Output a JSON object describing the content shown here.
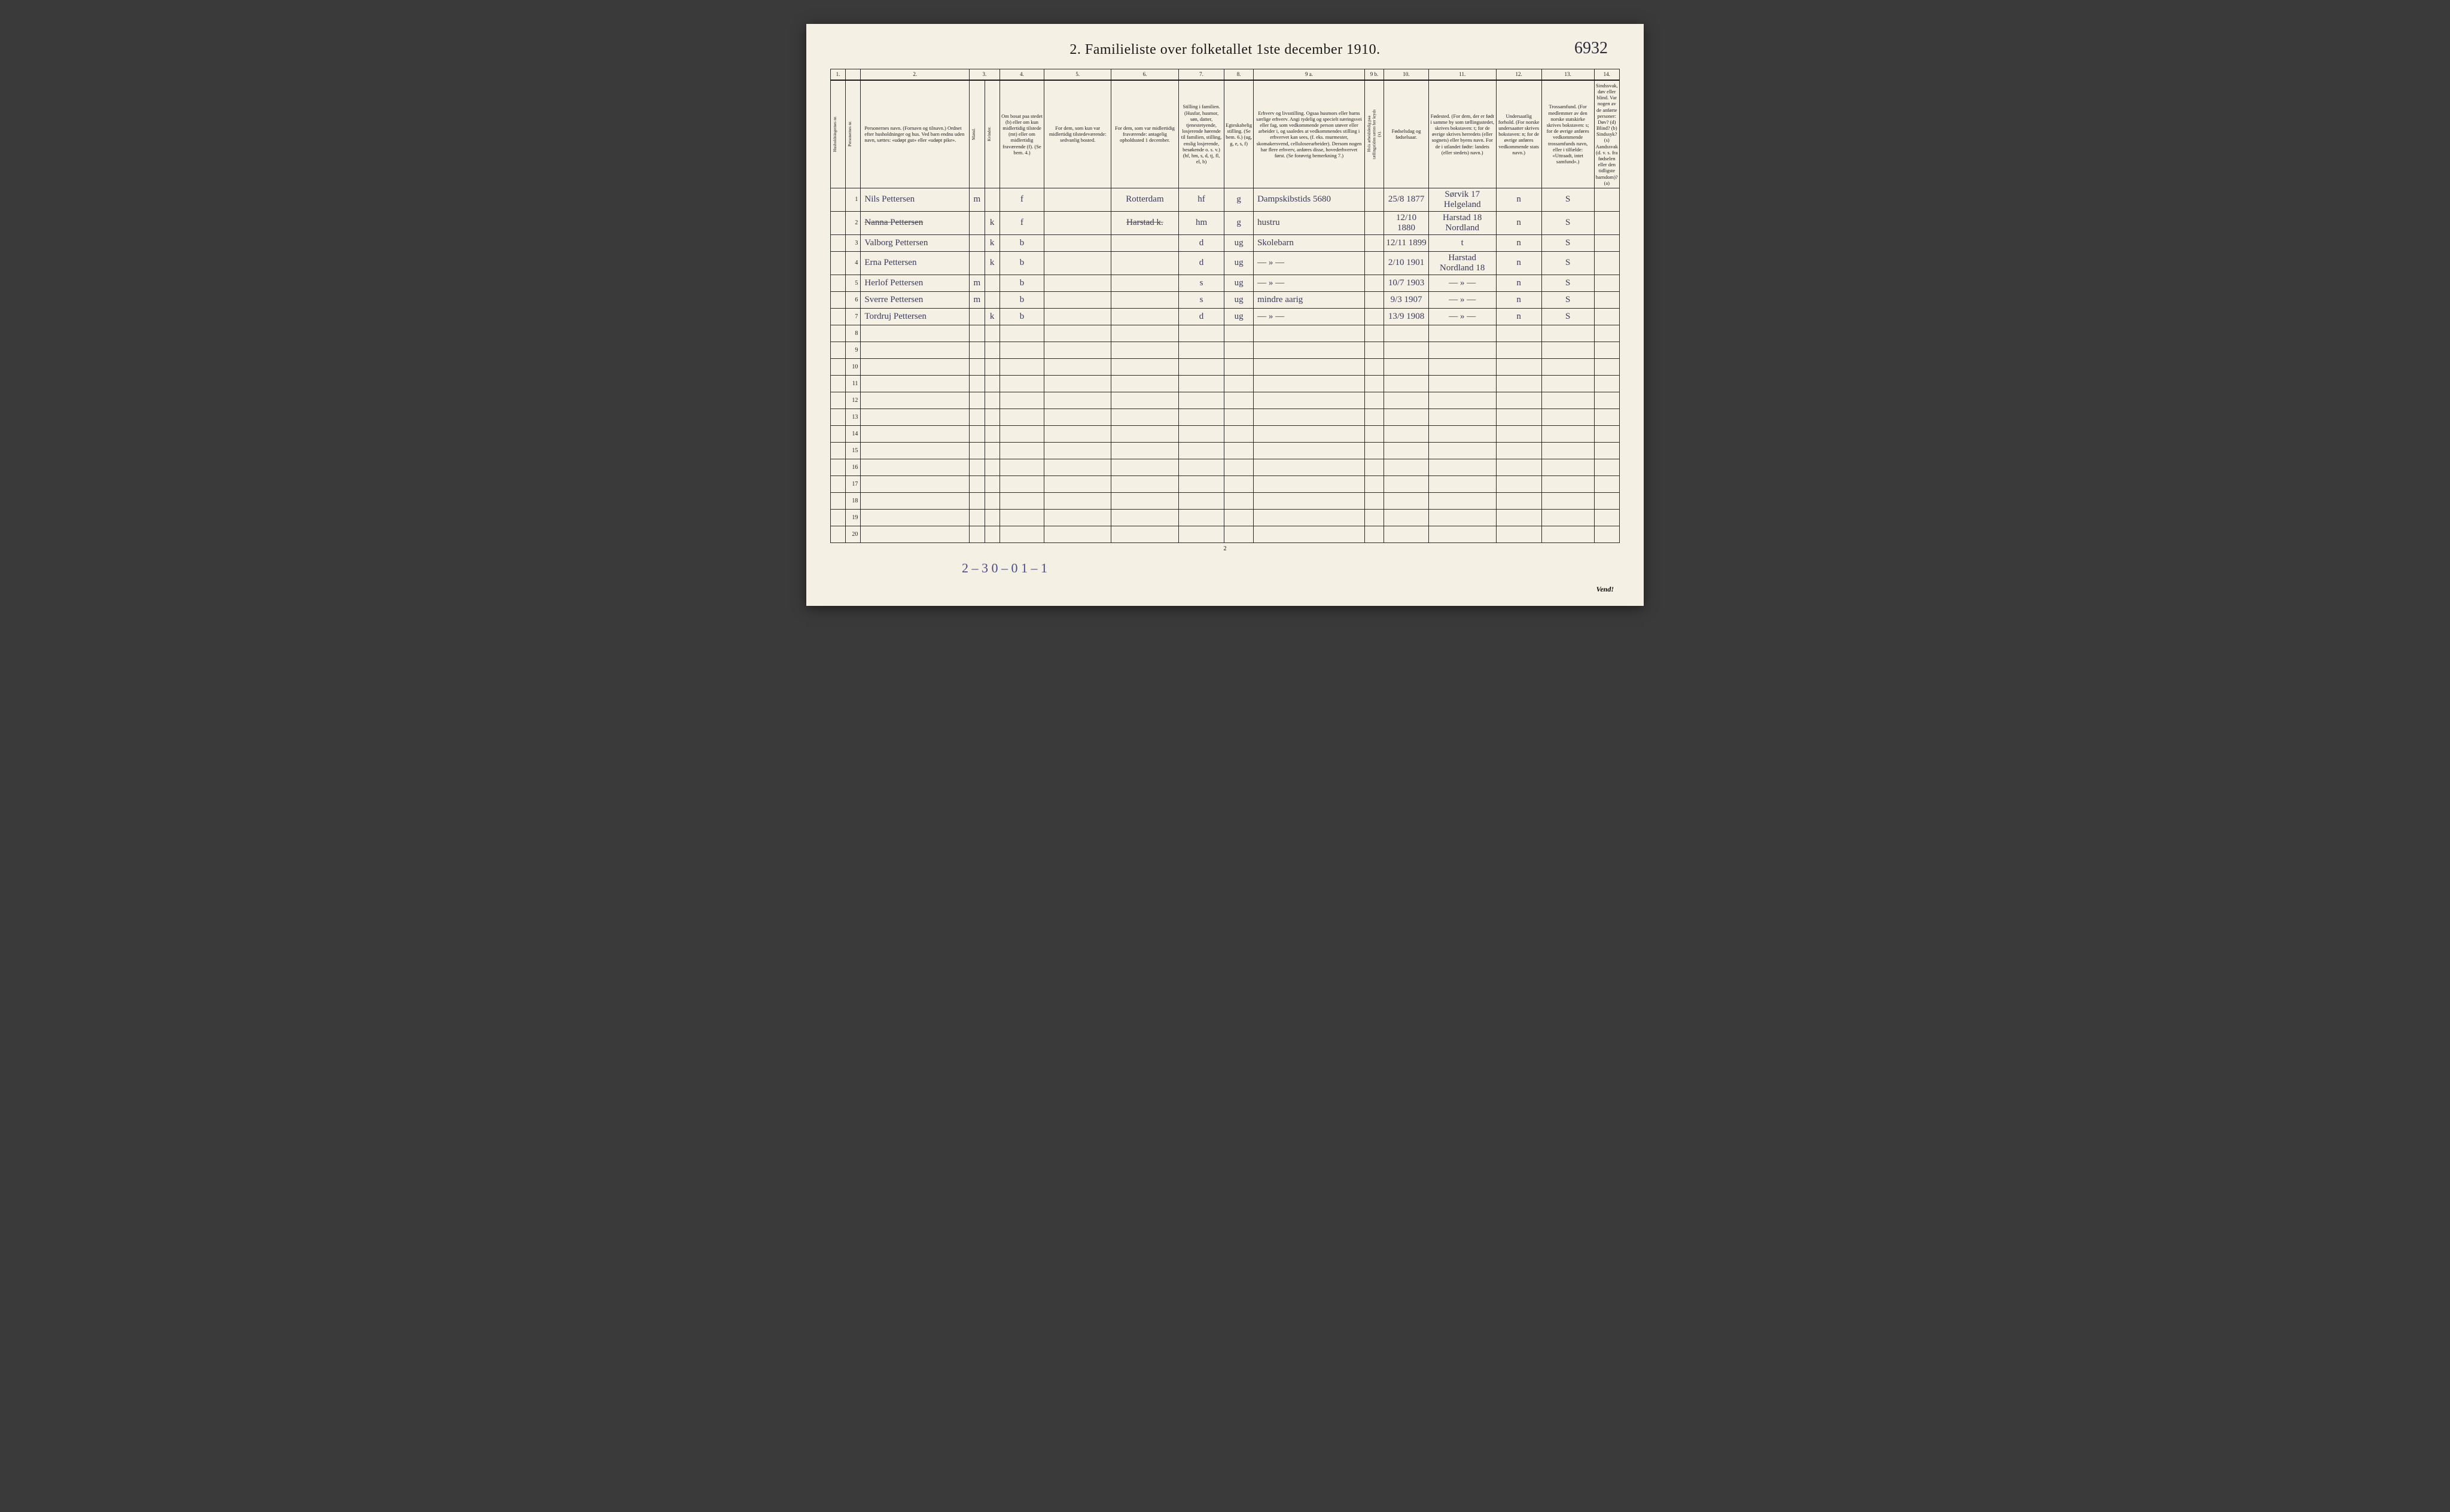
{
  "annotation_topright": "6932",
  "title": "2.  Familieliste over folketallet 1ste december 1910.",
  "column_numbers": [
    "1.",
    "",
    "2.",
    "3.",
    "4.",
    "5.",
    "6.",
    "7.",
    "8.",
    "9 a.",
    "9 b.",
    "10.",
    "11.",
    "12.",
    "13.",
    "14."
  ],
  "headers": {
    "c1": "Husholdningernes nr.",
    "c1b": "Personernes nr.",
    "c2": "Personernes navn.\n(Fornavn og tilnavn.)\nOrdnet efter husholdninger og hus.\nVed barn endnu uden navn, sættes: «udøpt gut» eller «udøpt pike».",
    "c3": "Kjøn.",
    "c3m": "Mænd.",
    "c3k": "Kvinder.",
    "c3sub": "m. k.",
    "c4": "Om bosat paa stedet (b) eller om kun midlertidig tilstede (mt) eller om midlertidig fraværende (f). (Se bem. 4.)",
    "c5": "For dem, som kun var midlertidig tilstedeværende:\nsedvanlig bosted.",
    "c6": "For dem, som var midlertidig fraværende:\nantagelig opholdssted 1 december.",
    "c7": "Stilling i familien.\n(Husfar, husmor, søn, datter, tjenestetyende, losjerende hørende til familien, stilling, enslig losjerende, besøkende o. s. v.)\n(hf, hm, s, d, tj, fl, el, b)",
    "c8": "Egteskabelig stilling.\n(Se bem. 6.)\n(ug, g, e, s, f)",
    "c9a": "Erhverv og livsstilling.\nOgsaa husmors eller barns særlige erhverv. Angi tydelig og specielt næringsvei eller fag, som vedkommende person utøver eller arbeider i, og saaledes at vedkommendes stilling i erhvervet kan sees, (f. eks. murmester, skomakersvend, celluloseearbeider). Dersom nogen har flere erhverv, anføres disse, hovederhvervet først. (Se forøvrig bemerkning 7.)",
    "c9b": "Hvis arbeidsledig paa tællingstiden sættes her kryds (x).",
    "c10": "Fødselsdag og fødselsaar.",
    "c11": "Fødested.\n(For dem, der er født i samme by som tællingsstedet, skrives bokstaven: t; for de øvrige skrives herredets (eller sognets) eller byens navn. For de i utlandet fødte: landets (eller stedets) navn.)",
    "c12": "Undersaatlig forhold.\n(For norske undersaatter skrives bokstaven: n; for de øvrige anføres vedkommende stats navn.)",
    "c13": "Trossamfund.\n(For medlemmer av den norske statskirke skrives bokstaven: s; for de øvrige anføres vedkommende trossamfunds navn, eller i tilfælde: «Uttraadt, intet samfund».)",
    "c14": "Sindssvak, døv eller blind.\nVar nogen av de anførte personer:\nDøv? (d)\nBlind? (b)\nSindssyk? (s)\nAandssvak (d. v. s. fra fødselen eller den tidligste barndom)? (a)"
  },
  "rows": [
    {
      "n": "1",
      "name": "Nils Pettersen",
      "sex": "m",
      "res": "f",
      "c5": "",
      "c6": "Rotterdam",
      "fam": "hf",
      "mar": "g",
      "occ": "Dampskibstids 5680",
      "dob": "25/8 1877",
      "birthplace": "Sørvik 17 Helgeland",
      "nat": "n",
      "rel": "S",
      "c14": ""
    },
    {
      "n": "2",
      "name": "Nanna Pettersen",
      "nameStruck": true,
      "sex": "k",
      "res": "f",
      "c5": "",
      "c6": "Harstad k.",
      "c6Struck": true,
      "fam": "hm",
      "mar": "g",
      "occ": "hustru",
      "dob": "12/10 1880",
      "birthplace": "Harstad 18 Nordland",
      "nat": "n",
      "rel": "S",
      "c14": ""
    },
    {
      "n": "3",
      "name": "Valborg Pettersen",
      "sex": "k",
      "res": "b",
      "c5": "",
      "c6": "",
      "fam": "d",
      "mar": "ug",
      "occ": "Skolebarn",
      "dob": "12/11 1899",
      "birthplace": "t",
      "nat": "n",
      "rel": "S",
      "c14": ""
    },
    {
      "n": "4",
      "name": "Erna Pettersen",
      "sex": "k",
      "res": "b",
      "c5": "",
      "c6": "",
      "fam": "d",
      "mar": "ug",
      "occ": "— » —",
      "dob": "2/10 1901",
      "birthplace": "Harstad Nordland 18",
      "nat": "n",
      "rel": "S",
      "c14": ""
    },
    {
      "n": "5",
      "name": "Herlof Pettersen",
      "sex": "m",
      "res": "b",
      "c5": "",
      "c6": "",
      "fam": "s",
      "mar": "ug",
      "occ": "— » —",
      "dob": "10/7 1903",
      "birthplace": "— » —",
      "nat": "n",
      "rel": "S",
      "c14": ""
    },
    {
      "n": "6",
      "name": "Sverre Pettersen",
      "sex": "m",
      "res": "b",
      "c5": "",
      "c6": "",
      "fam": "s",
      "mar": "ug",
      "occ": "mindre aarig",
      "dob": "9/3 1907",
      "birthplace": "— » —",
      "nat": "n",
      "rel": "S",
      "c14": ""
    },
    {
      "n": "7",
      "name": "Tordruj Pettersen",
      "sex": "k",
      "res": "b",
      "c5": "",
      "c6": "",
      "fam": "d",
      "mar": "ug",
      "occ": "— » —",
      "dob": "13/9 1908",
      "birthplace": "— » —",
      "nat": "n",
      "rel": "S",
      "c14": ""
    }
  ],
  "empty_rows": [
    "8",
    "9",
    "10",
    "11",
    "12",
    "13",
    "14",
    "15",
    "16",
    "17",
    "18",
    "19",
    "20"
  ],
  "bottom_annotation": "2 – 3  0 – 0  1 – 1",
  "page_number": "2",
  "vend": "Vend!",
  "colors": {
    "paper": "#f4f0e4",
    "ink": "#1a1a1a",
    "handwriting": "#3a3a5a",
    "pencil_blue": "#4a4a8a",
    "page_bg": "#3a3a3a"
  },
  "typography": {
    "title_fontsize_pt": 18,
    "header_fontsize_pt": 7,
    "handwriting_fontsize_pt": 12,
    "font_family_print": "Georgia, serif",
    "font_family_script": "Brush Script MT, cursive"
  }
}
